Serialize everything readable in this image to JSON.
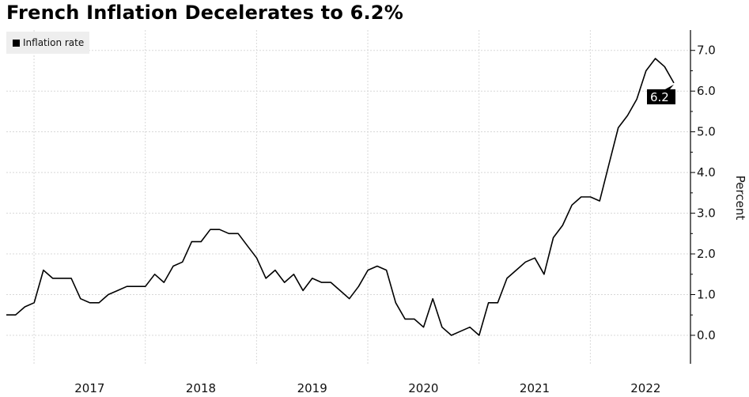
{
  "chart_data": {
    "type": "line",
    "title": "French Inflation Decelerates to 6.2%",
    "xlabel": "",
    "ylabel": "Percent",
    "ylim": [
      -0.7,
      7.5
    ],
    "yticks": [
      "0.0",
      "1.0",
      "2.0",
      "3.0",
      "4.0",
      "5.0",
      "6.0",
      "7.0"
    ],
    "year_labels": [
      "2017",
      "2018",
      "2019",
      "2020",
      "2021",
      "2022"
    ],
    "grid": true,
    "legend": {
      "position": "top-left",
      "entries": [
        "Inflation rate"
      ]
    },
    "last_value_label": "6.2",
    "start_month": "2016-09",
    "series": [
      {
        "name": "Inflation rate",
        "color": "#000000",
        "values": [
          0.5,
          0.5,
          0.7,
          0.8,
          1.6,
          1.4,
          1.4,
          1.4,
          0.9,
          0.8,
          0.8,
          1.0,
          1.1,
          1.2,
          1.2,
          1.2,
          1.5,
          1.3,
          1.7,
          1.8,
          2.3,
          2.3,
          2.6,
          2.6,
          2.5,
          2.5,
          2.2,
          1.9,
          1.4,
          1.6,
          1.3,
          1.5,
          1.1,
          1.4,
          1.3,
          1.3,
          1.1,
          0.9,
          1.2,
          1.6,
          1.7,
          1.6,
          0.8,
          0.4,
          0.4,
          0.2,
          0.9,
          0.2,
          0.0,
          0.1,
          0.2,
          0.0,
          0.8,
          0.8,
          1.4,
          1.6,
          1.8,
          1.9,
          1.5,
          2.4,
          2.7,
          3.2,
          3.4,
          3.4,
          3.3,
          4.2,
          5.1,
          5.4,
          5.8,
          6.5,
          6.8,
          6.6,
          6.2
        ]
      }
    ]
  }
}
